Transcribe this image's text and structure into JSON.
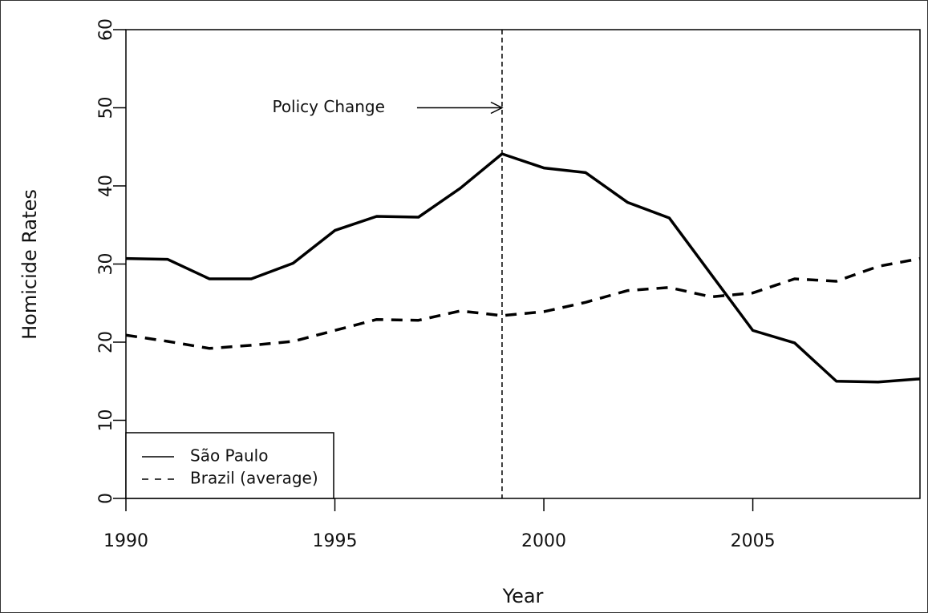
{
  "chart_data": {
    "type": "line",
    "x_label": "Year",
    "y_label": "Homicide Rates",
    "x": [
      1990,
      1991,
      1992,
      1993,
      1994,
      1995,
      1996,
      1997,
      1998,
      1999,
      2000,
      2001,
      2002,
      2003,
      2004,
      2005,
      2006,
      2007,
      2008,
      2009
    ],
    "series": [
      {
        "name": "São Paulo",
        "color": "#000000",
        "linestyle": "solid",
        "values": [
          30.7,
          30.6,
          28.1,
          28.1,
          30.1,
          34.3,
          36.1,
          36.0,
          39.7,
          44.1,
          42.3,
          41.7,
          37.9,
          35.9,
          28.7,
          21.5,
          19.9,
          15.0,
          14.9,
          15.3
        ]
      },
      {
        "name": "Brazil (average)",
        "color": "#000000",
        "linestyle": "dashed",
        "values": [
          20.9,
          20.1,
          19.2,
          19.6,
          20.1,
          21.5,
          22.9,
          22.8,
          24.0,
          23.4,
          23.9,
          25.1,
          26.6,
          27.0,
          25.8,
          26.3,
          28.1,
          27.8,
          29.7,
          30.7
        ]
      }
    ],
    "annotation": {
      "text": "Policy Change",
      "x": 1999,
      "y": 50
    },
    "xlim": [
      1990,
      2009
    ],
    "ylim": [
      0,
      60
    ],
    "xticks": [
      1990,
      1995,
      2000,
      2005
    ],
    "yticks": [
      0,
      10,
      20,
      30,
      40,
      50,
      60
    ],
    "legend": "bottomleft"
  }
}
